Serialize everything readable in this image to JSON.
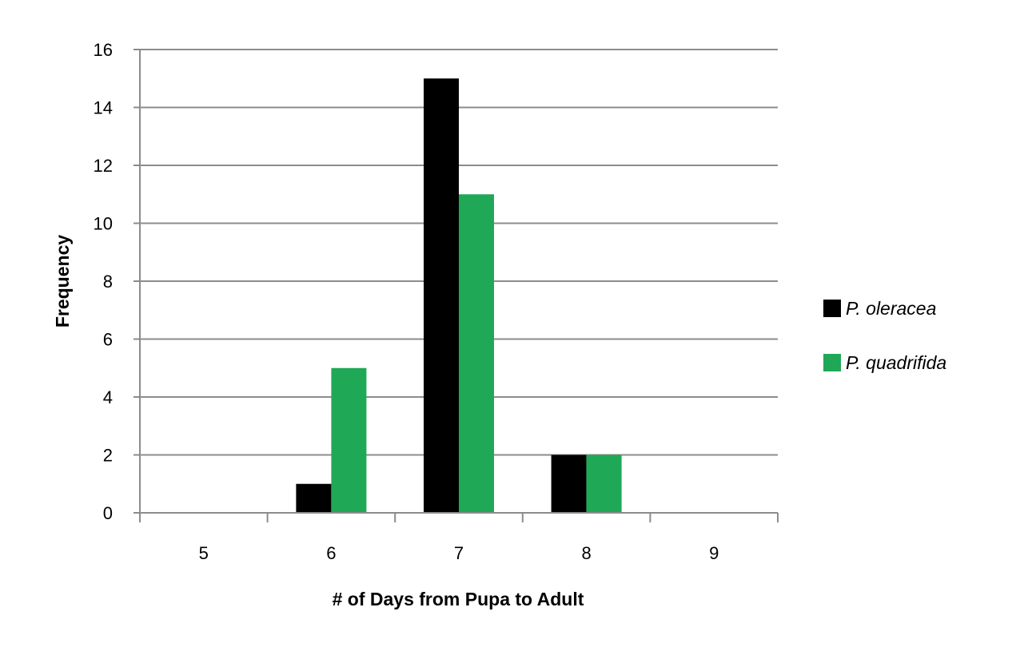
{
  "chart_data": {
    "type": "bar",
    "title": "",
    "xlabel": "# of Days from Pupa to Adult",
    "ylabel": "Frequency",
    "categories": [
      "5",
      "6",
      "7",
      "8",
      "9"
    ],
    "yticks": [
      "0",
      "2",
      "4",
      "6",
      "8",
      "10",
      "12",
      "14",
      "16"
    ],
    "ylim": [
      0,
      16
    ],
    "grid": true,
    "legend_position": "right",
    "series": [
      {
        "name": "P. oleracea",
        "color": "#000000",
        "values": [
          0,
          1,
          15,
          2,
          0
        ]
      },
      {
        "name": "P. quadrifida",
        "color": "#1fa855",
        "values": [
          0,
          5,
          11,
          2,
          0
        ]
      }
    ]
  }
}
